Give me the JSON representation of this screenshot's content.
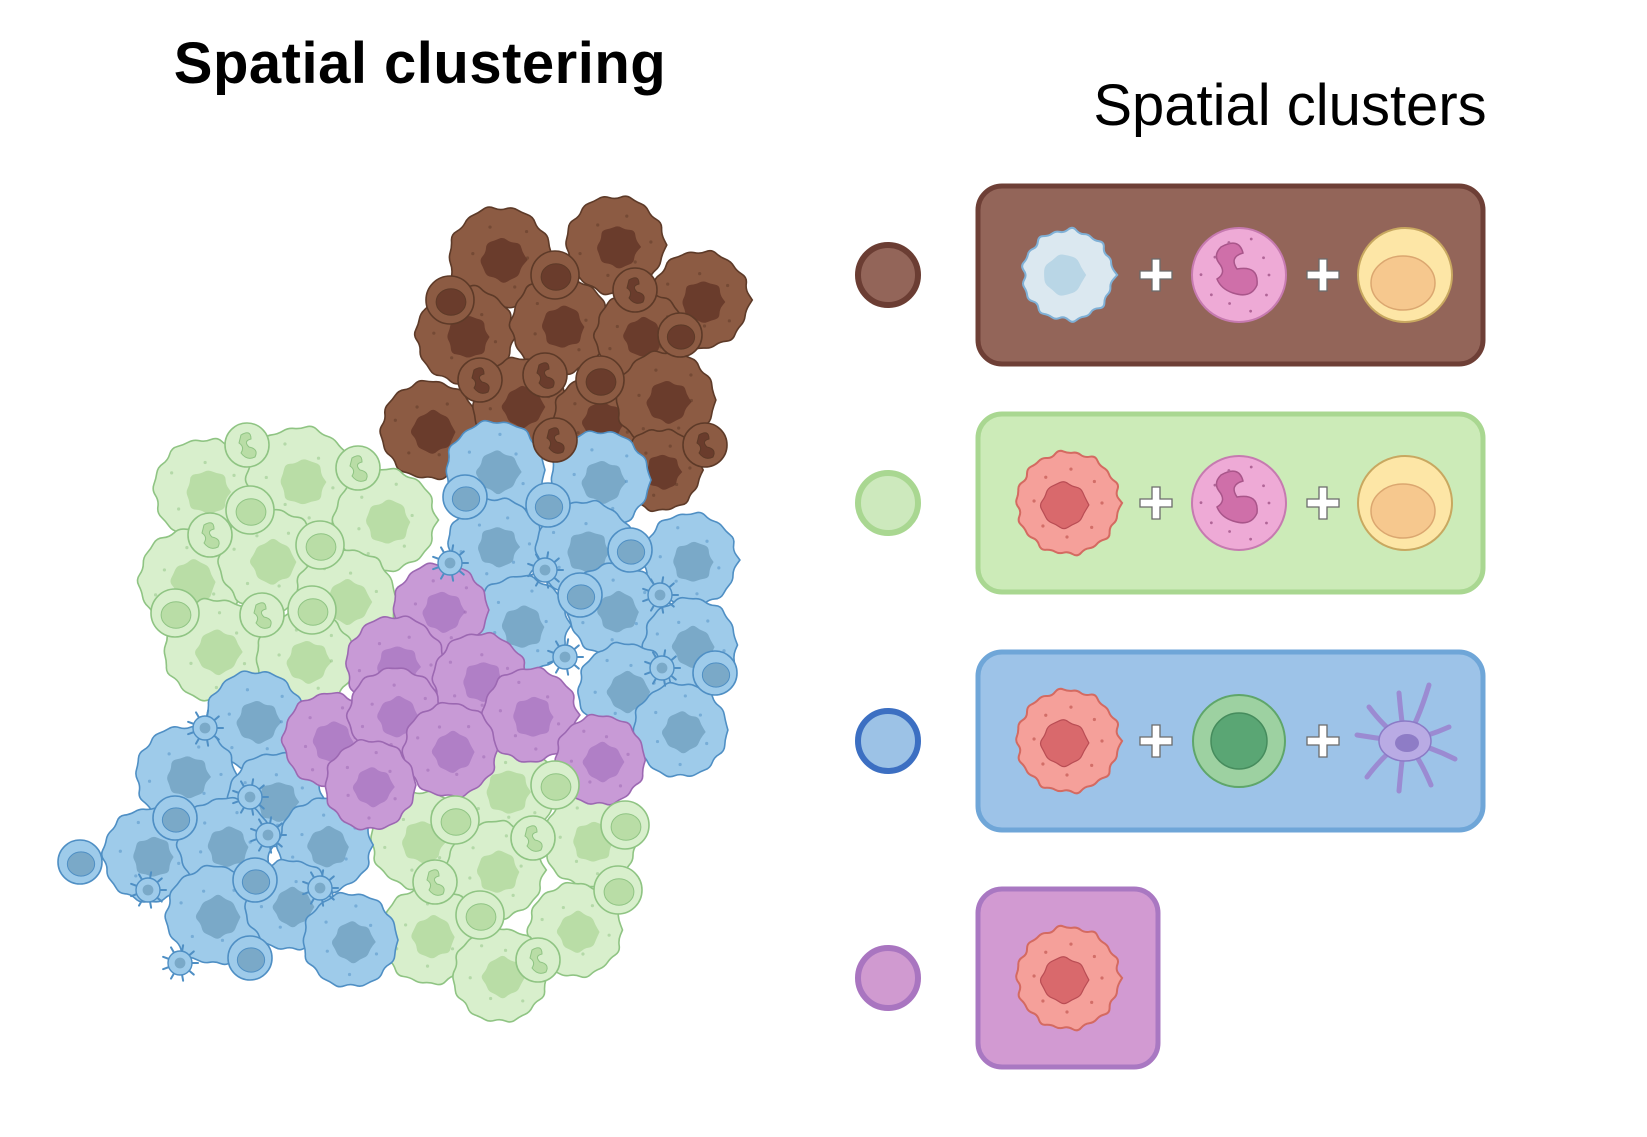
{
  "left_panel": {
    "title": "Spatial clustering"
  },
  "right_panel": {
    "title": "Spatial clusters",
    "plus_symbol": "+",
    "clusters": [
      {
        "color": "#936559",
        "border": "#6e3f36",
        "dot_fill": "#936559",
        "dot_border": "#6b3d33",
        "cells": [
          "macrophage-icon",
          "neutrophil-icon",
          "lymphoblast-icon"
        ]
      },
      {
        "color": "#ccebb8",
        "border": "#a9d791",
        "dot_fill": "#cde9bd",
        "dot_border": "#a9d791",
        "cells": [
          "tumor-cell-icon",
          "neutrophil-icon",
          "lymphoblast-icon"
        ]
      },
      {
        "color": "#9dc3e8",
        "border": "#6fa6d8",
        "dot_fill": "#9cc2e6",
        "dot_border": "#3c6fc2",
        "cells": [
          "tumor-cell-icon",
          "lymphocyte-icon",
          "dendritic-cell-icon"
        ]
      },
      {
        "color": "#d29ad2",
        "border": "#a978c2",
        "dot_fill": "#d09ad0",
        "dot_border": "#a975c0",
        "cells": [
          "tumor-cell-icon"
        ]
      }
    ]
  },
  "tissue_colors": {
    "brown": "#8e5f47",
    "green": "#d8f0cd",
    "blue": "#9fcbea",
    "purple": "#c79ad8"
  }
}
